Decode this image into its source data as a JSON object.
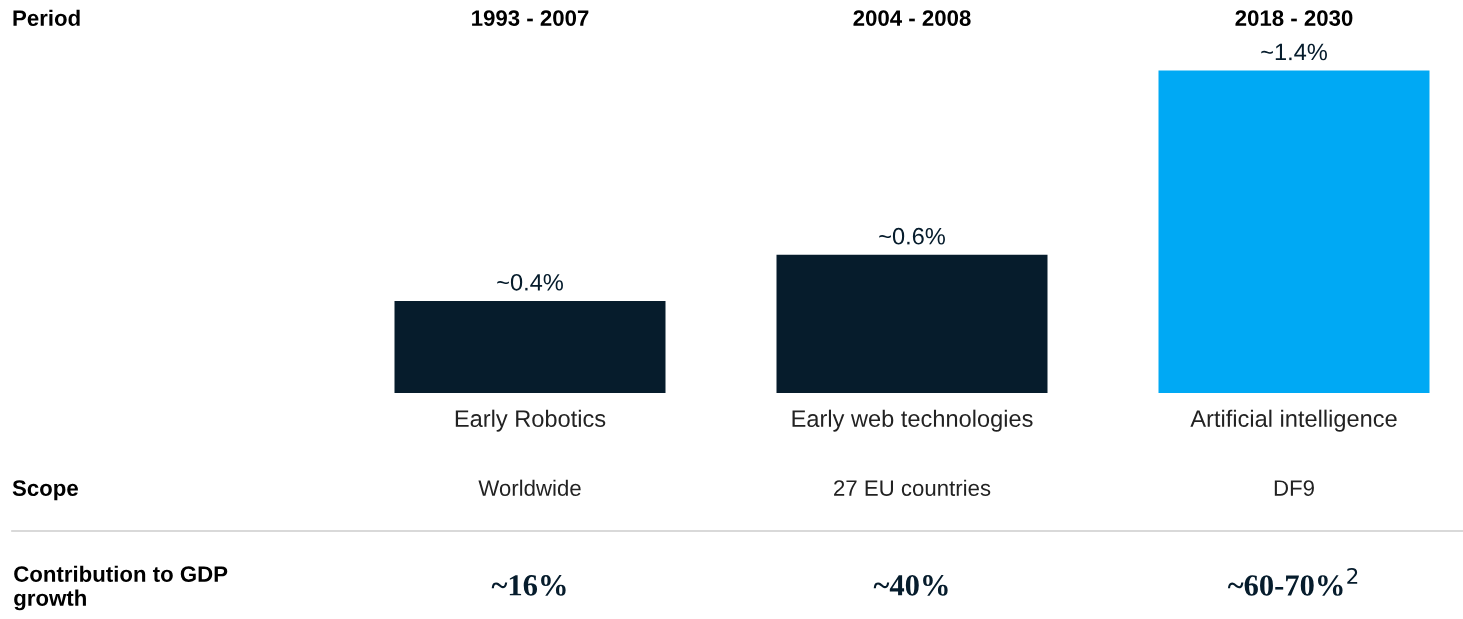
{
  "chart_data": {
    "type": "bar",
    "categories": [
      "Early Robotics",
      "Early web technologies",
      "Artificial intelligence"
    ],
    "values": [
      0.4,
      0.6,
      1.4
    ],
    "colors": [
      "#061c2c",
      "#061c2c",
      "#00a9f4"
    ],
    "value_labels": [
      "~0.4%",
      "~0.6%",
      "~1.4%"
    ],
    "grid": false,
    "annotations": [
      "Period",
      "1993 - 2007",
      "2004 - 2008",
      "2018 - 2030",
      "Scope",
      "Worldwide",
      "27 EU countries",
      "DF9",
      "Contribution to GDP growth",
      "~16%",
      "~40%",
      "~60-70%$^{2}$"
    ]
  }
}
